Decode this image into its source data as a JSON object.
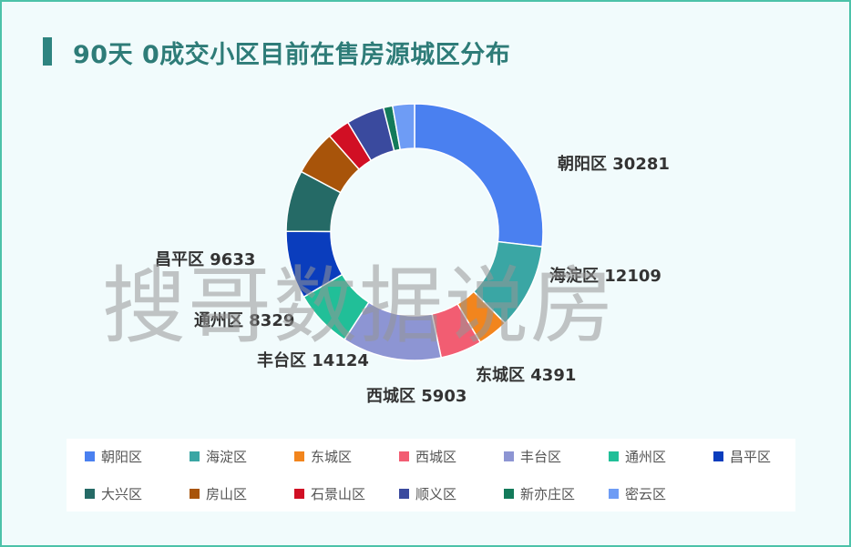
{
  "title": "90天 0成交小区目前在售房源城区分布",
  "watermark": "搜哥数据说房",
  "chart_data": {
    "type": "pie",
    "donut": true,
    "title": "90天 0成交小区目前在售房源城区分布",
    "categories": [
      "朝阳区",
      "海淀区",
      "东城区",
      "西城区",
      "丰台区",
      "通州区",
      "昌平区",
      "大兴区",
      "房山区",
      "石景山区",
      "顺义区",
      "新亦庄区",
      "密云区"
    ],
    "values": [
      30281,
      12109,
      4391,
      5903,
      14124,
      8329,
      9633,
      8700,
      6400,
      3200,
      5400,
      1300,
      3100
    ],
    "labeled_values": {
      "朝阳区": 30281,
      "海淀区": 12109,
      "东城区": 4391,
      "西城区": 5903,
      "丰台区": 14124,
      "通州区": 8329,
      "昌平区": 9633
    },
    "colors": [
      "#4a80f0",
      "#3aa6a4",
      "#f2851d",
      "#f25d72",
      "#8d95d3",
      "#21bf98",
      "#0a3dbd",
      "#256a66",
      "#a8540a",
      "#d10f24",
      "#3a4a9e",
      "#137a5a",
      "#6e9cf5"
    ],
    "legend_position": "bottom"
  },
  "labels": {
    "chaoyang": "朝阳区 30281",
    "haidian": "海淀区 12109",
    "dongcheng": "东城区 4391",
    "xicheng": "西城区 5903",
    "fengtai": "丰台区 14124",
    "tongzhou": "通州区 8329",
    "changping": "昌平区 9633"
  },
  "legend": [
    {
      "name": "朝阳区",
      "color": "#4a80f0"
    },
    {
      "name": "海淀区",
      "color": "#3aa6a4"
    },
    {
      "name": "东城区",
      "color": "#f2851d"
    },
    {
      "name": "西城区",
      "color": "#f25d72"
    },
    {
      "name": "丰台区",
      "color": "#8d95d3"
    },
    {
      "name": "通州区",
      "color": "#21bf98"
    },
    {
      "name": "昌平区",
      "color": "#0a3dbd"
    },
    {
      "name": "大兴区",
      "color": "#256a66"
    },
    {
      "name": "房山区",
      "color": "#a8540a"
    },
    {
      "name": "石景山区",
      "color": "#d10f24"
    },
    {
      "name": "顺义区",
      "color": "#3a4a9e"
    },
    {
      "name": "新亦庄区",
      "color": "#137a5a"
    },
    {
      "name": "密云区",
      "color": "#6e9cf5"
    }
  ]
}
